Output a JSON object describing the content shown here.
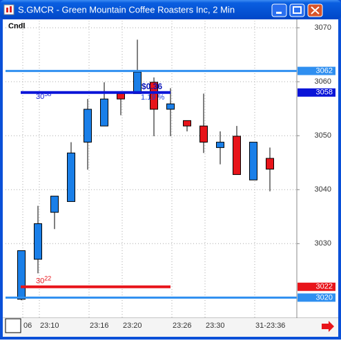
{
  "chart_data": {
    "type": "candlestick",
    "title": "S.GMCR - Green Mountain Coffee Roasters Inc, 2 Min",
    "label": "Cndl",
    "categories": [
      "06",
      "23:10",
      null,
      null,
      "23:16",
      null,
      "23:20",
      null,
      null,
      "23:26",
      null,
      "23:30",
      null,
      null,
      "31-23:36",
      null
    ],
    "open": [
      3019.7,
      3027.1,
      3035.8,
      3037.8,
      3048.8,
      3051.8,
      3057.8,
      3057.8,
      3059.9,
      3054.9,
      3052.8,
      3051.8,
      3047.8,
      3049.9,
      3041.8,
      3045.8
    ],
    "high": [
      3028.7,
      3037.0,
      3038.8,
      3048.8,
      3056.8,
      3059.9,
      3057.8,
      3067.8,
      3060.8,
      3058.8,
      3052.8,
      3057.8,
      3050.8,
      3051.8,
      3048.8,
      3047.8
    ],
    "low": [
      3019.5,
      3024.5,
      3032.7,
      3037.8,
      3043.7,
      3051.8,
      3053.8,
      3057.8,
      3049.9,
      3049.9,
      3050.8,
      3046.8,
      3044.7,
      3042.8,
      3041.8,
      3039.7
    ],
    "close": [
      3028.7,
      3033.7,
      3038.8,
      3046.8,
      3054.9,
      3056.8,
      3056.8,
      3061.8,
      3054.9,
      3055.9,
      3051.8,
      3048.8,
      3048.8,
      3042.8,
      3048.8,
      3043.8
    ],
    "up_color": "#1a7fe8",
    "down_color": "#e8141a",
    "ylim": [
      3016.2,
      3071.3
    ],
    "yticks": [
      3030,
      3040,
      3050,
      3060,
      3070
    ],
    "grid": true,
    "levels": [
      {
        "value": 3062,
        "color": "#2f8ff0",
        "span": "full"
      },
      {
        "value": 3058,
        "color": "#0a14d8",
        "span": "short",
        "inline_label": true
      },
      {
        "value": 3022,
        "color": "#e8141a",
        "span": "short",
        "inline_label": true
      },
      {
        "value": 3020,
        "color": "#2f8ff0",
        "span": "full"
      }
    ],
    "annotations": [
      "$0.36",
      "1.19 %"
    ]
  }
}
